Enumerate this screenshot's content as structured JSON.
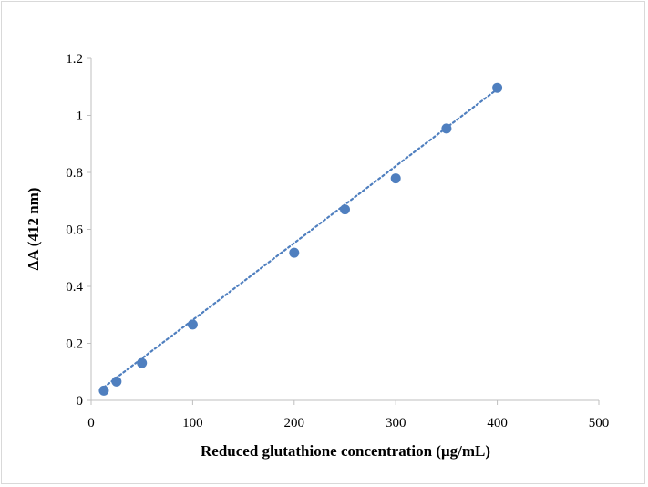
{
  "chart_data": {
    "type": "scatter",
    "title": "",
    "xlabel": "Reduced glutathione concentration (μg/mL)",
    "ylabel": "ΔA (412 nm)",
    "xlim": [
      0,
      500
    ],
    "ylim": [
      0,
      1.2
    ],
    "x_ticks": [
      "0",
      "100",
      "200",
      "300",
      "400",
      "500"
    ],
    "y_ticks": [
      "0",
      "0.2",
      "0.4",
      "0.6",
      "0.8",
      "1",
      "1.2"
    ],
    "grid": false,
    "legend": "none",
    "series": [
      {
        "x": [
          12.5,
          25,
          50,
          100,
          200,
          250,
          300,
          350,
          400
        ],
        "y": [
          0.034,
          0.066,
          0.131,
          0.266,
          0.518,
          0.67,
          0.779,
          0.954,
          1.097
        ],
        "marker_color": "#4f7fbf"
      }
    ],
    "trendline": {
      "style": "dotted",
      "color": "#4f7fbf",
      "x_range": [
        12.5,
        400
      ],
      "slope": 0.0027,
      "intercept": 0.012
    }
  }
}
